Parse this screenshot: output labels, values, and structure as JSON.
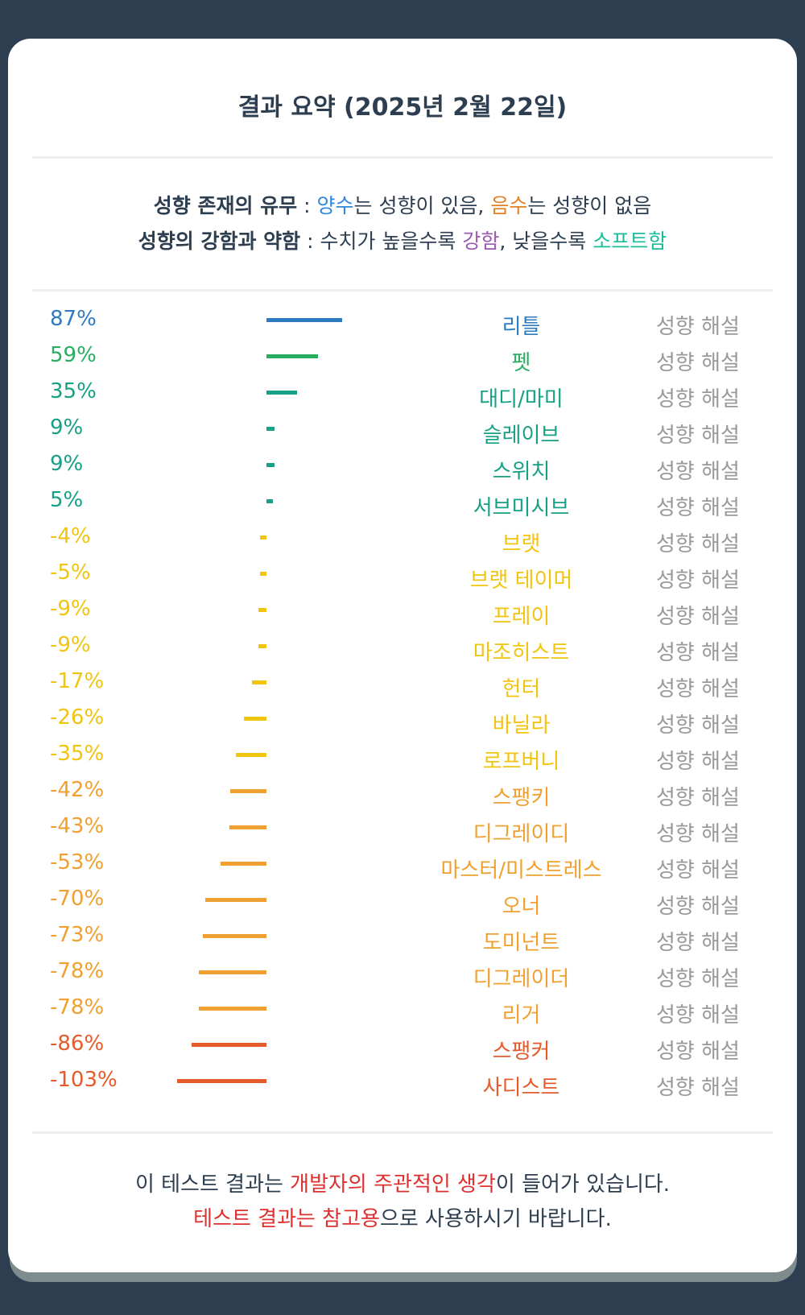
{
  "title": "결과 요약 (2025년 2월 22일)",
  "legend": {
    "line1": {
      "bold": "성향 존재의 유무",
      "sep": " : ",
      "pos": "양수",
      "t1": "는 성향이 있음, ",
      "neg": "음수",
      "t2": "는 성향이 없음"
    },
    "line2": {
      "bold": "성향의 강함과 약함",
      "sep": " : ",
      "t1": "수치가 높을수록 ",
      "strong": "강함",
      "t2": ", 낮을수록 ",
      "soft": "소프트함"
    }
  },
  "colors": {
    "blue": "#2e7bbf",
    "green": "#27ae60",
    "teal": "#16a085",
    "yellow": "#f1c40f",
    "orange": "#f0a030",
    "redorange": "#e55b2b",
    "pos": "#2e86de",
    "neg": "#e67e22",
    "strong": "#9b59b6",
    "soft": "#1abc9c"
  },
  "explain_label": "성향 해설",
  "rows": [
    {
      "pct": "87%",
      "value": 87,
      "name": "리틀",
      "color": "#2e7bbf"
    },
    {
      "pct": "59%",
      "value": 59,
      "name": "펫",
      "color": "#27ae60"
    },
    {
      "pct": "35%",
      "value": 35,
      "name": "대디/마미",
      "color": "#16a085"
    },
    {
      "pct": "9%",
      "value": 9,
      "name": "슬레이브",
      "color": "#16a085"
    },
    {
      "pct": "9%",
      "value": 9,
      "name": "스위치",
      "color": "#16a085"
    },
    {
      "pct": "5%",
      "value": 5,
      "name": "서브미시브",
      "color": "#16a085"
    },
    {
      "pct": "-4%",
      "value": -4,
      "name": "브랫",
      "color": "#f1c40f"
    },
    {
      "pct": "-5%",
      "value": -5,
      "name": "브랫 테이머",
      "color": "#f1c40f"
    },
    {
      "pct": "-9%",
      "value": -9,
      "name": "프레이",
      "color": "#f1c40f"
    },
    {
      "pct": "-9%",
      "value": -9,
      "name": "마조히스트",
      "color": "#f1c40f"
    },
    {
      "pct": "-17%",
      "value": -17,
      "name": "헌터",
      "color": "#f1c40f"
    },
    {
      "pct": "-26%",
      "value": -26,
      "name": "바닐라",
      "color": "#f1c40f"
    },
    {
      "pct": "-35%",
      "value": -35,
      "name": "로프버니",
      "color": "#f1c40f"
    },
    {
      "pct": "-42%",
      "value": -42,
      "name": "스팽키",
      "color": "#f0a030"
    },
    {
      "pct": "-43%",
      "value": -43,
      "name": "디그레이디",
      "color": "#f0a030"
    },
    {
      "pct": "-53%",
      "value": -53,
      "name": "마스터/미스트레스",
      "color": "#f0a030"
    },
    {
      "pct": "-70%",
      "value": -70,
      "name": "오너",
      "color": "#f0a030"
    },
    {
      "pct": "-73%",
      "value": -73,
      "name": "도미넌트",
      "color": "#f0a030"
    },
    {
      "pct": "-78%",
      "value": -78,
      "name": "디그레이더",
      "color": "#f0a030"
    },
    {
      "pct": "-78%",
      "value": -78,
      "name": "리거",
      "color": "#f0a030"
    },
    {
      "pct": "-86%",
      "value": -86,
      "name": "스팽커",
      "color": "#e55b2b"
    },
    {
      "pct": "-103%",
      "value": -103,
      "name": "사디스트",
      "color": "#e55b2b"
    }
  ],
  "footer": {
    "line1": {
      "t1": "이 테스트 결과는 ",
      "red": "개발자의 주관적인 생각",
      "t2": "이 들어가 있습니다."
    },
    "line2": {
      "red": "테스트 결과는 참고용",
      "t1": "으로 사용하시기 바랍니다."
    }
  }
}
